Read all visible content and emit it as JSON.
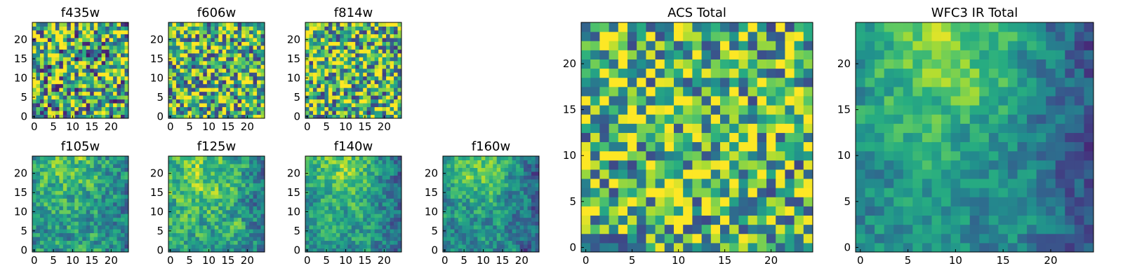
{
  "colormap": "viridis",
  "chart_data": [
    {
      "type": "heatmap",
      "title": "f435w",
      "grid_size": 25,
      "xticks": [
        0,
        5,
        10,
        15,
        20
      ],
      "yticks": [
        0,
        5,
        10,
        15,
        20
      ],
      "xlim": [
        0,
        24
      ],
      "ylim": [
        0,
        24
      ],
      "grid": false,
      "pattern": "noise",
      "mean": 0.62,
      "spread": 0.55,
      "seed": 11,
      "blob": 0.0
    },
    {
      "type": "heatmap",
      "title": "f606w",
      "grid_size": 25,
      "xticks": [
        0,
        5,
        10,
        15,
        20
      ],
      "yticks": [
        0,
        5,
        10,
        15,
        20
      ],
      "xlim": [
        0,
        24
      ],
      "ylim": [
        0,
        24
      ],
      "grid": false,
      "pattern": "noise",
      "mean": 0.66,
      "spread": 0.5,
      "seed": 23,
      "blob": 0.0
    },
    {
      "type": "heatmap",
      "title": "f814w",
      "grid_size": 25,
      "xticks": [
        0,
        5,
        10,
        15,
        20
      ],
      "yticks": [
        0,
        5,
        10,
        15,
        20
      ],
      "xlim": [
        0,
        24
      ],
      "ylim": [
        0,
        24
      ],
      "grid": false,
      "pattern": "noise",
      "mean": 0.66,
      "spread": 0.5,
      "seed": 37,
      "blob": 0.05
    },
    {
      "type": "heatmap",
      "title": "f105w",
      "grid_size": 25,
      "xticks": [
        0,
        5,
        10,
        15,
        20
      ],
      "yticks": [
        0,
        5,
        10,
        15,
        20
      ],
      "xlim": [
        0,
        24
      ],
      "ylim": [
        0,
        24
      ],
      "grid": false,
      "pattern": "smooth",
      "mean": 0.55,
      "spread": 0.35,
      "seed": 41,
      "blob": 0.3
    },
    {
      "type": "heatmap",
      "title": "f125w",
      "grid_size": 25,
      "xticks": [
        0,
        5,
        10,
        15,
        20
      ],
      "yticks": [
        0,
        5,
        10,
        15,
        20
      ],
      "xlim": [
        0,
        24
      ],
      "ylim": [
        0,
        24
      ],
      "grid": false,
      "pattern": "smooth",
      "mean": 0.6,
      "spread": 0.35,
      "seed": 53,
      "blob": 0.3
    },
    {
      "type": "heatmap",
      "title": "f140w",
      "grid_size": 25,
      "xticks": [
        0,
        5,
        10,
        15,
        20
      ],
      "yticks": [
        0,
        5,
        10,
        15,
        20
      ],
      "xlim": [
        0,
        24
      ],
      "ylim": [
        0,
        24
      ],
      "grid": false,
      "pattern": "smooth",
      "mean": 0.55,
      "spread": 0.3,
      "seed": 67,
      "blob": 0.4
    },
    {
      "type": "heatmap",
      "title": "f160w",
      "grid_size": 25,
      "xticks": [
        0,
        5,
        10,
        15,
        20
      ],
      "yticks": [
        0,
        5,
        10,
        15,
        20
      ],
      "xlim": [
        0,
        24
      ],
      "ylim": [
        0,
        24
      ],
      "grid": false,
      "pattern": "smooth",
      "mean": 0.5,
      "spread": 0.3,
      "seed": 79,
      "blob": 0.45
    },
    {
      "type": "heatmap",
      "title": "ACS Total",
      "grid_size": 25,
      "xticks": [
        0,
        5,
        10,
        15,
        20
      ],
      "yticks": [
        0,
        5,
        10,
        15,
        20
      ],
      "xlim": [
        0,
        24
      ],
      "ylim": [
        0,
        24
      ],
      "grid": false,
      "pattern": "noise",
      "mean": 0.66,
      "spread": 0.45,
      "seed": 97,
      "blob": 0.05
    },
    {
      "type": "heatmap",
      "title": "WFC3 IR Total",
      "grid_size": 25,
      "xticks": [
        0,
        5,
        10,
        15,
        20
      ],
      "yticks": [
        0,
        5,
        10,
        15,
        20
      ],
      "xlim": [
        0,
        24
      ],
      "ylim": [
        0,
        24
      ],
      "grid": false,
      "pattern": "smooth",
      "mean": 0.5,
      "spread": 0.25,
      "seed": 101,
      "blob": 0.5
    }
  ]
}
